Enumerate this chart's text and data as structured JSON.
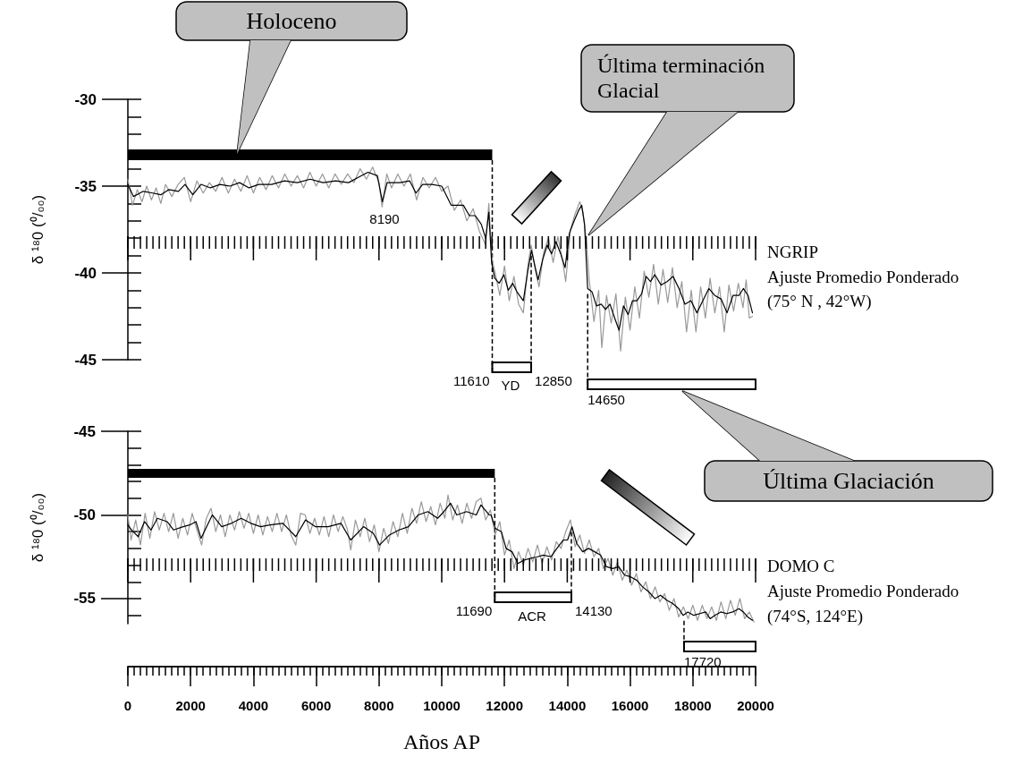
{
  "chart_data": [
    {
      "type": "line",
      "ylabel": "δ ¹⁸0 (⁰/₀₀)",
      "xlim": [
        0,
        20000
      ],
      "xticks": [
        0,
        2000,
        4000,
        6000,
        8000,
        10000,
        12000,
        14000,
        16000,
        18000,
        20000
      ],
      "ylim": [
        -45,
        -30
      ],
      "yticks": [
        -45,
        -40,
        -35,
        -30
      ],
      "tick_labels": "y",
      "series": [
        {
          "color": "#999999",
          "x": [
            0,
            150,
            300,
            450,
            600,
            750,
            900,
            1050,
            1200,
            1400,
            1600,
            1800,
            2000,
            2200,
            2400,
            2600,
            2800,
            3000,
            3200,
            3400,
            3600,
            3800,
            4000,
            4200,
            4400,
            4600,
            4800,
            5000,
            5200,
            5400,
            5600,
            5800,
            6000,
            6200,
            6400,
            6600,
            6800,
            7000,
            7200,
            7400,
            7600,
            7800,
            8000,
            8100,
            8250,
            8400,
            8600,
            8800,
            9000,
            9200,
            9400,
            9600,
            9800,
            10000,
            10200,
            10400,
            10600,
            10800,
            11000,
            11200,
            11400,
            11500,
            11600,
            11700,
            11850,
            12000,
            12150,
            12300,
            12450,
            12600,
            12750,
            12850,
            13000,
            13100,
            13250,
            13400,
            13550,
            13700,
            13850,
            13950,
            14100,
            14250,
            14400,
            14500,
            14600,
            14700,
            14850,
            15000,
            15100,
            15250,
            15400,
            15550,
            15700,
            15850,
            16000,
            16150,
            16300,
            16450,
            16600,
            16750,
            16900,
            17050,
            17200,
            17350,
            17500,
            17650,
            17800,
            17950,
            18100,
            18250,
            18400,
            18550,
            18700,
            18850,
            19000,
            19150,
            19300,
            19450,
            19600,
            19700,
            19800,
            19900
          ],
          "values": [
            -34.6,
            -36.1,
            -35.2,
            -35.9,
            -35.0,
            -35.8,
            -35.1,
            -36.0,
            -34.9,
            -35.6,
            -34.9,
            -34.5,
            -35.9,
            -34.7,
            -35.4,
            -34.8,
            -35.3,
            -34.5,
            -35.4,
            -34.6,
            -35.3,
            -34.4,
            -35.4,
            -34.5,
            -35.2,
            -34.4,
            -35.1,
            -34.3,
            -35.0,
            -34.4,
            -35.1,
            -34.2,
            -35.0,
            -34.3,
            -35.1,
            -34.3,
            -34.9,
            -34.3,
            -34.8,
            -34.0,
            -34.6,
            -33.9,
            -34.8,
            -36.2,
            -34.3,
            -35.1,
            -34.3,
            -35.0,
            -34.3,
            -35.8,
            -34.5,
            -35.1,
            -34.5,
            -35.3,
            -35.0,
            -36.4,
            -35.8,
            -37.0,
            -36.3,
            -37.6,
            -38.4,
            -36.0,
            -39.2,
            -40.0,
            -41.3,
            -39.6,
            -41.6,
            -40.2,
            -41.8,
            -42.3,
            -39.5,
            -38.4,
            -40.0,
            -40.8,
            -38.8,
            -38.0,
            -39.4,
            -37.9,
            -39.3,
            -40.5,
            -37.5,
            -36.6,
            -35.9,
            -36.5,
            -38.0,
            -40.4,
            -42.8,
            -41.0,
            -44.3,
            -41.3,
            -42.9,
            -41.2,
            -44.5,
            -41.4,
            -43.3,
            -40.8,
            -42.6,
            -39.9,
            -41.4,
            -39.5,
            -41.8,
            -39.8,
            -41.7,
            -39.7,
            -42.0,
            -40.5,
            -43.4,
            -41.0,
            -43.4,
            -40.8,
            -42.6,
            -40.3,
            -42.3,
            -40.8,
            -43.4,
            -40.7,
            -42.2,
            -40.6,
            -42.0,
            -40.4,
            -42.6,
            -42.5
          ]
        },
        {
          "color": "#000000",
          "x": [
            0,
            180,
            490,
            790,
            1050,
            1300,
            1610,
            1820,
            2070,
            2330,
            2630,
            2940,
            3250,
            3560,
            3860,
            4170,
            4580,
            4990,
            5400,
            5810,
            6220,
            6620,
            7030,
            7340,
            7650,
            7950,
            8110,
            8260,
            8670,
            8980,
            9180,
            9390,
            9690,
            10000,
            10300,
            10690,
            10880,
            11070,
            11260,
            11400,
            11500,
            11590,
            11690,
            11830,
            11980,
            12120,
            12260,
            12400,
            12600,
            12740,
            12860,
            12980,
            13070,
            13220,
            13360,
            13500,
            13640,
            13790,
            13930,
            14070,
            14220,
            14360,
            14460,
            14550,
            14650,
            14790,
            14930,
            15080,
            15220,
            15360,
            15510,
            15650,
            15790,
            15940,
            16080,
            16220,
            16370,
            16510,
            16650,
            16790,
            16990,
            17180,
            17370,
            17560,
            17750,
            17940,
            18130,
            18320,
            18510,
            18700,
            18900,
            19090,
            19280,
            19470,
            19610,
            19760,
            19900
          ],
          "values": [
            -34.9,
            -35.6,
            -35.3,
            -35.4,
            -35.5,
            -35.2,
            -35.3,
            -34.9,
            -35.5,
            -34.9,
            -35.1,
            -34.9,
            -35.0,
            -34.8,
            -35.1,
            -34.9,
            -34.9,
            -34.7,
            -34.8,
            -34.6,
            -34.8,
            -34.7,
            -34.8,
            -34.5,
            -34.2,
            -34.4,
            -35.9,
            -34.8,
            -34.8,
            -34.7,
            -35.4,
            -34.9,
            -34.9,
            -35.0,
            -36.1,
            -36.1,
            -36.7,
            -36.7,
            -37.2,
            -38.0,
            -36.5,
            -39.4,
            -40.3,
            -40.6,
            -40.1,
            -41.0,
            -40.6,
            -41.1,
            -41.6,
            -39.9,
            -38.7,
            -39.7,
            -40.4,
            -39.2,
            -38.4,
            -38.9,
            -38.2,
            -38.9,
            -39.7,
            -37.7,
            -37.0,
            -36.4,
            -36.1,
            -37.2,
            -40.9,
            -41.1,
            -41.9,
            -41.8,
            -42.1,
            -41.8,
            -42.6,
            -43.3,
            -41.9,
            -42.4,
            -41.6,
            -41.6,
            -41.2,
            -40.2,
            -40.5,
            -40.1,
            -40.7,
            -40.5,
            -40.2,
            -40.9,
            -41.8,
            -41.6,
            -42.3,
            -41.6,
            -40.9,
            -41.3,
            -41.5,
            -42.3,
            -41.3,
            -41.3,
            -40.9,
            -41.3,
            -42.3
          ]
        }
      ],
      "bands": [
        {
          "axis": "x",
          "from": 0,
          "to": 11610,
          "color": "#000000"
        }
      ],
      "ref_lines": [
        {
          "axis": "x",
          "value": 11610,
          "label": "11610",
          "line_style": "dashed"
        },
        {
          "axis": "x",
          "value": 12850,
          "label": "12850",
          "line_style": "dashed"
        },
        {
          "axis": "x",
          "value": 14650,
          "label": "14650",
          "line_style": "dashed"
        }
      ],
      "annotations": [
        "Holoceno",
        "Última terminación Glacial",
        "Última Glaciación",
        "NGRIP",
        "Ajuste Promedio Ponderado",
        "(75° N , 42°W)",
        "8190",
        "YD"
      ]
    },
    {
      "type": "line",
      "ylabel": "δ ¹⁸0 (⁰/₀₀)",
      "xlabel": "Años AP",
      "xlim": [
        0,
        20000
      ],
      "xticks": [
        0,
        2000,
        4000,
        6000,
        8000,
        10000,
        12000,
        14000,
        16000,
        18000,
        20000
      ],
      "ylim": [
        -56.5,
        -45
      ],
      "yticks": [
        -55,
        -50,
        -45
      ],
      "series": [
        {
          "color": "#999999",
          "x": [
            0,
            100,
            250,
            400,
            550,
            700,
            850,
            1000,
            1150,
            1300,
            1450,
            1600,
            1750,
            1900,
            2050,
            2200,
            2350,
            2500,
            2650,
            2800,
            2950,
            3100,
            3250,
            3400,
            3550,
            3700,
            3850,
            4000,
            4150,
            4300,
            4450,
            4600,
            4750,
            4900,
            5050,
            5200,
            5350,
            5500,
            5650,
            5800,
            5950,
            6100,
            6250,
            6400,
            6550,
            6700,
            6850,
            7000,
            7100,
            7250,
            7400,
            7550,
            7700,
            7850,
            8000,
            8150,
            8300,
            8450,
            8600,
            8750,
            8900,
            9050,
            9200,
            9350,
            9500,
            9650,
            9800,
            9950,
            10100,
            10200,
            10350,
            10500,
            10650,
            10800,
            10950,
            11100,
            11250,
            11400,
            11550,
            11700,
            11850,
            12000,
            12150,
            12300,
            12450,
            12600,
            12750,
            12900,
            13050,
            13200,
            13350,
            13500,
            13650,
            13800,
            13950,
            14100,
            14250,
            14400,
            14550,
            14700,
            14850,
            15000,
            15150,
            15300,
            15450,
            15600,
            15750,
            15900,
            16050,
            16200,
            16350,
            16500,
            16650,
            16800,
            16950,
            17100,
            17250,
            17400,
            17550,
            17700,
            17850,
            18000,
            18150,
            18300,
            18450,
            18600,
            18750,
            18900,
            19050,
            19200,
            19350,
            19500,
            19650,
            19800,
            19950
          ],
          "values": [
            -50.0,
            -51.5,
            -50.3,
            -51.8,
            -49.9,
            -51.4,
            -49.8,
            -50.9,
            -49.9,
            -51.0,
            -49.9,
            -51.4,
            -50.2,
            -51.2,
            -49.9,
            -50.9,
            -51.8,
            -50.2,
            -49.6,
            -51.0,
            -50.0,
            -51.3,
            -50.0,
            -50.9,
            -49.8,
            -50.8,
            -49.9,
            -51.1,
            -50.0,
            -51.2,
            -50.1,
            -51.0,
            -49.9,
            -51.0,
            -50.0,
            -51.2,
            -51.8,
            -49.9,
            -50.0,
            -51.1,
            -50.2,
            -51.2,
            -50.1,
            -51.3,
            -50.0,
            -51.0,
            -50.1,
            -50.9,
            -52.1,
            -50.3,
            -51.3,
            -50.2,
            -51.6,
            -50.6,
            -52.2,
            -50.8,
            -51.7,
            -50.4,
            -51.3,
            -49.9,
            -51.1,
            -49.6,
            -50.5,
            -49.2,
            -50.4,
            -49.5,
            -50.6,
            -49.3,
            -50.2,
            -48.8,
            -50.3,
            -49.4,
            -50.5,
            -49.3,
            -50.2,
            -49.2,
            -49.0,
            -50.3,
            -49.7,
            -51.2,
            -50.4,
            -52.4,
            -51.5,
            -53.2,
            -52.2,
            -53.0,
            -52.0,
            -52.8,
            -51.8,
            -52.9,
            -51.9,
            -52.7,
            -51.6,
            -52.0,
            -51.0,
            -50.3,
            -51.9,
            -51.2,
            -52.3,
            -51.5,
            -52.5,
            -52.0,
            -53.2,
            -52.6,
            -53.6,
            -52.8,
            -53.9,
            -53.3,
            -54.2,
            -53.5,
            -54.6,
            -54.0,
            -55.0,
            -54.3,
            -55.2,
            -54.7,
            -55.7,
            -55.0,
            -56.1,
            -55.5,
            -56.2,
            -55.4,
            -56.3,
            -55.4,
            -56.2,
            -55.5,
            -56.3,
            -55.2,
            -56.2,
            -55.1,
            -56.0,
            -55.0,
            -56.2,
            -55.8,
            -56.4
          ]
        },
        {
          "color": "#000000",
          "x": [
            0,
            120,
            330,
            530,
            740,
            940,
            1250,
            1460,
            1760,
            1970,
            2170,
            2330,
            2690,
            2990,
            3300,
            3610,
            3920,
            4230,
            4530,
            4940,
            5350,
            5660,
            5970,
            6380,
            6790,
            7100,
            7510,
            7820,
            8020,
            8330,
            8640,
            8940,
            9250,
            9560,
            9870,
            10070,
            10280,
            10480,
            10790,
            11100,
            11250,
            11510,
            11570,
            11710,
            11900,
            12050,
            12240,
            12430,
            12620,
            12810,
            13050,
            13240,
            13480,
            13670,
            13870,
            14010,
            14150,
            14300,
            14490,
            14680,
            14870,
            15060,
            15250,
            15450,
            15640,
            15830,
            16020,
            16210,
            16400,
            16600,
            16790,
            16970,
            17170,
            17360,
            17550,
            17690,
            17840,
            18030,
            18220,
            18410,
            18550,
            18700,
            18890,
            19080,
            19270,
            19470,
            19610,
            19750,
            19900
          ],
          "values": [
            -50.6,
            -50.9,
            -51.3,
            -50.4,
            -50.9,
            -50.2,
            -50.4,
            -50.9,
            -50.7,
            -50.6,
            -50.4,
            -51.4,
            -50.0,
            -50.7,
            -50.5,
            -50.2,
            -50.5,
            -50.7,
            -50.6,
            -50.5,
            -51.3,
            -50.3,
            -50.7,
            -50.7,
            -50.5,
            -51.5,
            -50.7,
            -51.1,
            -51.8,
            -51.2,
            -50.9,
            -50.7,
            -50.0,
            -49.8,
            -50.2,
            -49.8,
            -49.3,
            -50.0,
            -49.8,
            -50.0,
            -49.4,
            -50.0,
            -50.0,
            -50.8,
            -51.0,
            -52.0,
            -52.2,
            -52.9,
            -52.7,
            -52.6,
            -52.5,
            -52.4,
            -52.5,
            -52.0,
            -51.5,
            -51.5,
            -50.7,
            -51.7,
            -52.2,
            -52.0,
            -52.2,
            -52.4,
            -53.1,
            -53.2,
            -53.1,
            -53.6,
            -53.7,
            -53.9,
            -54.3,
            -54.6,
            -55.0,
            -54.8,
            -55.1,
            -55.3,
            -55.6,
            -56.0,
            -55.8,
            -56.0,
            -55.9,
            -55.8,
            -56.2,
            -56.0,
            -55.8,
            -55.9,
            -55.8,
            -55.6,
            -55.8,
            -56.1,
            -56.3
          ]
        }
      ],
      "bands": [
        {
          "axis": "x",
          "from": 0,
          "to": 11690,
          "color": "#000000"
        }
      ],
      "ref_lines": [
        {
          "axis": "x",
          "value": 11690,
          "label": "11690",
          "line_style": "dashed"
        },
        {
          "axis": "x",
          "value": 14130,
          "label": "14130",
          "line_style": "dashed"
        },
        {
          "axis": "x",
          "value": 17720,
          "label": "17720",
          "line_style": "dashed"
        }
      ],
      "annotations": [
        "DOMO C",
        "Ajuste Promedio Ponderado",
        "(74°S, 124°E)",
        "ACR"
      ]
    }
  ]
}
